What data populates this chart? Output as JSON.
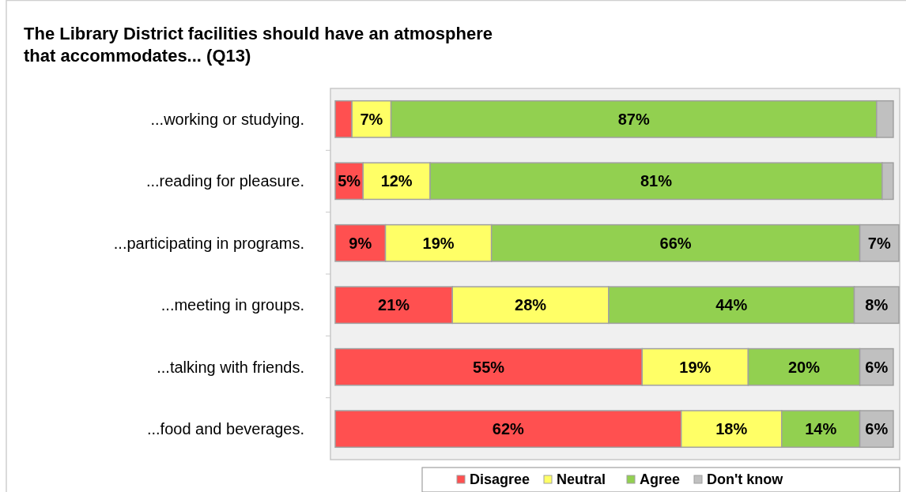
{
  "chart_data": {
    "type": "bar",
    "orientation": "horizontal",
    "stacked": true,
    "title": "The Library District facilities should have an atmosphere that accommodates... (Q13)",
    "categories": [
      "...working or studying.",
      "...reading for pleasure.",
      "...participating in programs.",
      "...meeting in groups.",
      "...talking with friends.",
      "...food and beverages."
    ],
    "series": [
      {
        "name": "Disagree",
        "color": "#ff5050",
        "values": [
          3,
          5,
          9,
          21,
          55,
          62
        ],
        "value_labels": [
          null,
          "5%",
          "9%",
          "21%",
          "55%",
          "62%"
        ]
      },
      {
        "name": "Neutral",
        "color": "#ffff66",
        "values": [
          7,
          12,
          19,
          28,
          19,
          18
        ],
        "value_labels": [
          "7%",
          "12%",
          "19%",
          "28%",
          "19%",
          "18%"
        ]
      },
      {
        "name": "Agree",
        "color": "#92d050",
        "values": [
          87,
          81,
          66,
          44,
          20,
          14
        ],
        "value_labels": [
          "87%",
          "81%",
          "66%",
          "44%",
          "20%",
          "14%"
        ]
      },
      {
        "name": "Don't know",
        "color": "#c0c0c0",
        "values": [
          3,
          2,
          7,
          8,
          6,
          6
        ],
        "value_labels": [
          null,
          null,
          "7%",
          "8%",
          "6%",
          "6%"
        ]
      }
    ],
    "xlim": [
      0,
      101
    ],
    "tick_labels": "y",
    "legend": "bottom",
    "grid": false
  }
}
